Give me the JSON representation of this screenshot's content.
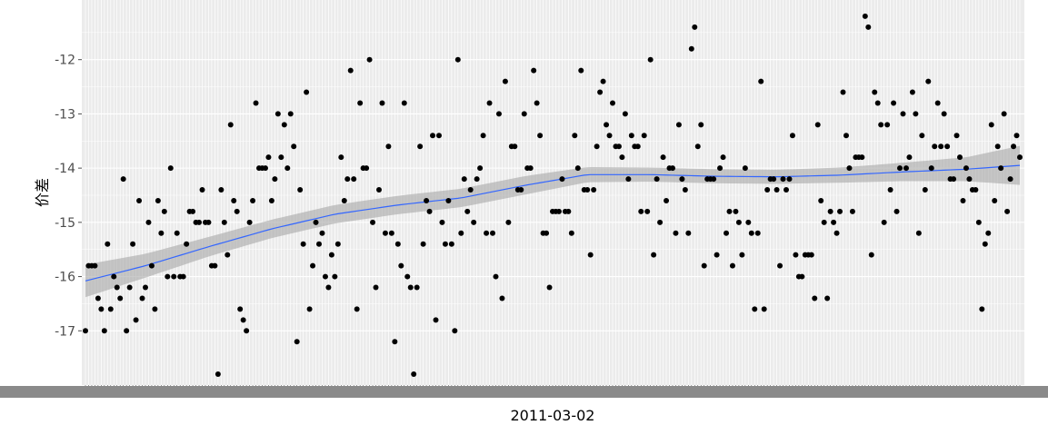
{
  "chart_data": {
    "type": "scatter",
    "title": "",
    "xlabel": "2011-03-02",
    "ylabel": "价差",
    "ylim": [
      -18.0,
      -10.9
    ],
    "yticks": [
      -17,
      -16,
      -15,
      -14,
      -13,
      -12
    ],
    "ytick_labels": [
      "-17",
      "-16",
      "-15",
      "-14",
      "-13",
      "-12"
    ],
    "x_axis_note": "x is the observation index 1..297 along a categorical time axis; only the overlapping tick labels and the title '2011-03-02' are legible",
    "grid": true,
    "point_color": "#000000",
    "smooth_color": "#3366ff",
    "ribbon_color": "#a6a6a6",
    "panel_background": "#ebebeb",
    "grid_color": "#ffffff",
    "points": [
      [
        1,
        -17.0
      ],
      [
        2,
        -15.8
      ],
      [
        3,
        -15.8
      ],
      [
        4,
        -15.8
      ],
      [
        5,
        -16.4
      ],
      [
        6,
        -16.6
      ],
      [
        7,
        -17.0
      ],
      [
        8,
        -15.4
      ],
      [
        9,
        -16.6
      ],
      [
        10,
        -16.0
      ],
      [
        11,
        -16.2
      ],
      [
        12,
        -16.4
      ],
      [
        13,
        -14.2
      ],
      [
        14,
        -17.0
      ],
      [
        15,
        -16.2
      ],
      [
        16,
        -15.4
      ],
      [
        17,
        -16.8
      ],
      [
        18,
        -14.6
      ],
      [
        19,
        -16.4
      ],
      [
        20,
        -16.2
      ],
      [
        21,
        -15.0
      ],
      [
        22,
        -15.8
      ],
      [
        23,
        -16.6
      ],
      [
        24,
        -14.6
      ],
      [
        25,
        -15.2
      ],
      [
        26,
        -14.8
      ],
      [
        27,
        -16.0
      ],
      [
        28,
        -14.0
      ],
      [
        29,
        -16.0
      ],
      [
        30,
        -15.2
      ],
      [
        31,
        -16.0
      ],
      [
        32,
        -16.0
      ],
      [
        33,
        -15.4
      ],
      [
        34,
        -14.8
      ],
      [
        35,
        -14.8
      ],
      [
        36,
        -15.0
      ],
      [
        37,
        -15.0
      ],
      [
        38,
        -14.4
      ],
      [
        39,
        -15.0
      ],
      [
        40,
        -15.0
      ],
      [
        41,
        -15.8
      ],
      [
        42,
        -15.8
      ],
      [
        43,
        -17.8
      ],
      [
        44,
        -14.4
      ],
      [
        45,
        -15.0
      ],
      [
        46,
        -15.6
      ],
      [
        47,
        -13.2
      ],
      [
        48,
        -14.6
      ],
      [
        49,
        -14.8
      ],
      [
        50,
        -16.6
      ],
      [
        51,
        -16.8
      ],
      [
        52,
        -17.0
      ],
      [
        53,
        -15.0
      ],
      [
        54,
        -14.6
      ],
      [
        55,
        -12.8
      ],
      [
        56,
        -14.0
      ],
      [
        57,
        -14.0
      ],
      [
        58,
        -14.0
      ],
      [
        59,
        -13.8
      ],
      [
        60,
        -14.6
      ],
      [
        61,
        -14.2
      ],
      [
        62,
        -13.0
      ],
      [
        63,
        -13.8
      ],
      [
        64,
        -13.2
      ],
      [
        65,
        -14.0
      ],
      [
        66,
        -13.0
      ],
      [
        67,
        -13.6
      ],
      [
        68,
        -17.2
      ],
      [
        69,
        -14.4
      ],
      [
        70,
        -15.4
      ],
      [
        71,
        -12.6
      ],
      [
        72,
        -16.6
      ],
      [
        73,
        -15.8
      ],
      [
        74,
        -15.0
      ],
      [
        75,
        -15.4
      ],
      [
        76,
        -15.2
      ],
      [
        77,
        -16.0
      ],
      [
        78,
        -16.2
      ],
      [
        79,
        -15.6
      ],
      [
        80,
        -16.0
      ],
      [
        81,
        -15.4
      ],
      [
        82,
        -13.8
      ],
      [
        83,
        -14.6
      ],
      [
        84,
        -14.2
      ],
      [
        85,
        -12.2
      ],
      [
        86,
        -14.2
      ],
      [
        87,
        -16.6
      ],
      [
        88,
        -12.8
      ],
      [
        89,
        -14.0
      ],
      [
        90,
        -14.0
      ],
      [
        91,
        -12.0
      ],
      [
        92,
        -15.0
      ],
      [
        93,
        -16.2
      ],
      [
        94,
        -14.4
      ],
      [
        95,
        -12.8
      ],
      [
        96,
        -15.2
      ],
      [
        97,
        -13.6
      ],
      [
        98,
        -15.2
      ],
      [
        99,
        -17.2
      ],
      [
        100,
        -15.4
      ],
      [
        101,
        -15.8
      ],
      [
        102,
        -12.8
      ],
      [
        103,
        -16.0
      ],
      [
        104,
        -16.2
      ],
      [
        105,
        -17.8
      ],
      [
        106,
        -16.2
      ],
      [
        107,
        -13.6
      ],
      [
        108,
        -15.4
      ],
      [
        109,
        -14.6
      ],
      [
        110,
        -14.8
      ],
      [
        111,
        -13.4
      ],
      [
        112,
        -16.8
      ],
      [
        113,
        -13.4
      ],
      [
        114,
        -15.0
      ],
      [
        115,
        -15.4
      ],
      [
        116,
        -14.6
      ],
      [
        117,
        -15.4
      ],
      [
        118,
        -17.0
      ],
      [
        119,
        -12.0
      ],
      [
        120,
        -15.2
      ],
      [
        121,
        -14.2
      ],
      [
        122,
        -14.8
      ],
      [
        123,
        -14.4
      ],
      [
        124,
        -15.0
      ],
      [
        125,
        -14.2
      ],
      [
        126,
        -14.0
      ],
      [
        127,
        -13.4
      ],
      [
        128,
        -15.2
      ],
      [
        129,
        -12.8
      ],
      [
        130,
        -15.2
      ],
      [
        131,
        -16.0
      ],
      [
        132,
        -13.0
      ],
      [
        133,
        -16.4
      ],
      [
        134,
        -12.4
      ],
      [
        135,
        -15.0
      ],
      [
        136,
        -13.6
      ],
      [
        137,
        -13.6
      ],
      [
        138,
        -14.4
      ],
      [
        139,
        -14.4
      ],
      [
        140,
        -13.0
      ],
      [
        141,
        -14.0
      ],
      [
        142,
        -14.0
      ],
      [
        143,
        -12.2
      ],
      [
        144,
        -12.8
      ],
      [
        145,
        -13.4
      ],
      [
        146,
        -15.2
      ],
      [
        147,
        -15.2
      ],
      [
        148,
        -16.2
      ],
      [
        149,
        -14.8
      ],
      [
        150,
        -14.8
      ],
      [
        151,
        -14.8
      ],
      [
        152,
        -14.2
      ],
      [
        153,
        -14.8
      ],
      [
        154,
        -14.8
      ],
      [
        155,
        -15.2
      ],
      [
        156,
        -13.4
      ],
      [
        157,
        -14.0
      ],
      [
        158,
        -12.2
      ],
      [
        159,
        -14.4
      ],
      [
        160,
        -14.4
      ],
      [
        161,
        -15.6
      ],
      [
        162,
        -14.4
      ],
      [
        163,
        -13.6
      ],
      [
        164,
        -12.6
      ],
      [
        165,
        -12.4
      ],
      [
        166,
        -13.2
      ],
      [
        167,
        -13.4
      ],
      [
        168,
        -12.8
      ],
      [
        169,
        -13.6
      ],
      [
        170,
        -13.6
      ],
      [
        171,
        -13.8
      ],
      [
        172,
        -13.0
      ],
      [
        173,
        -14.2
      ],
      [
        174,
        -13.4
      ],
      [
        175,
        -13.6
      ],
      [
        176,
        -13.6
      ],
      [
        177,
        -14.8
      ],
      [
        178,
        -13.4
      ],
      [
        179,
        -14.8
      ],
      [
        180,
        -12.0
      ],
      [
        181,
        -15.6
      ],
      [
        182,
        -14.2
      ],
      [
        183,
        -15.0
      ],
      [
        184,
        -13.8
      ],
      [
        185,
        -14.6
      ],
      [
        186,
        -14.0
      ],
      [
        187,
        -14.0
      ],
      [
        188,
        -15.2
      ],
      [
        189,
        -13.2
      ],
      [
        190,
        -14.2
      ],
      [
        191,
        -14.4
      ],
      [
        192,
        -15.2
      ],
      [
        193,
        -11.8
      ],
      [
        194,
        -11.4
      ],
      [
        195,
        -13.6
      ],
      [
        196,
        -13.2
      ],
      [
        197,
        -15.8
      ],
      [
        198,
        -14.2
      ],
      [
        199,
        -14.2
      ],
      [
        200,
        -14.2
      ],
      [
        201,
        -15.6
      ],
      [
        202,
        -14.0
      ],
      [
        203,
        -13.8
      ],
      [
        204,
        -15.2
      ],
      [
        205,
        -14.8
      ],
      [
        206,
        -15.8
      ],
      [
        207,
        -14.8
      ],
      [
        208,
        -15.0
      ],
      [
        209,
        -15.6
      ],
      [
        210,
        -14.0
      ],
      [
        211,
        -15.0
      ],
      [
        212,
        -15.2
      ],
      [
        213,
        -16.6
      ],
      [
        214,
        -15.2
      ],
      [
        215,
        -12.4
      ],
      [
        216,
        -16.6
      ],
      [
        217,
        -14.4
      ],
      [
        218,
        -14.2
      ],
      [
        219,
        -14.2
      ],
      [
        220,
        -14.4
      ],
      [
        221,
        -15.8
      ],
      [
        222,
        -14.2
      ],
      [
        223,
        -14.4
      ],
      [
        224,
        -14.2
      ],
      [
        225,
        -13.4
      ],
      [
        226,
        -15.6
      ],
      [
        227,
        -16.0
      ],
      [
        228,
        -16.0
      ],
      [
        229,
        -15.6
      ],
      [
        230,
        -15.6
      ],
      [
        231,
        -15.6
      ],
      [
        232,
        -16.4
      ],
      [
        233,
        -13.2
      ],
      [
        234,
        -14.6
      ],
      [
        235,
        -15.0
      ],
      [
        236,
        -16.4
      ],
      [
        237,
        -14.8
      ],
      [
        238,
        -15.0
      ],
      [
        239,
        -15.2
      ],
      [
        240,
        -14.8
      ],
      [
        241,
        -12.6
      ],
      [
        242,
        -13.4
      ],
      [
        243,
        -14.0
      ],
      [
        244,
        -14.8
      ],
      [
        245,
        -13.8
      ],
      [
        246,
        -13.8
      ],
      [
        247,
        -13.8
      ],
      [
        248,
        -11.2
      ],
      [
        249,
        -11.4
      ],
      [
        250,
        -15.6
      ],
      [
        251,
        -12.6
      ],
      [
        252,
        -12.8
      ],
      [
        253,
        -13.2
      ],
      [
        254,
        -15.0
      ],
      [
        255,
        -13.2
      ],
      [
        256,
        -14.4
      ],
      [
        257,
        -12.8
      ],
      [
        258,
        -14.8
      ],
      [
        259,
        -14.0
      ],
      [
        260,
        -13.0
      ],
      [
        261,
        -14.0
      ],
      [
        262,
        -13.8
      ],
      [
        263,
        -12.6
      ],
      [
        264,
        -13.0
      ],
      [
        265,
        -15.2
      ],
      [
        266,
        -13.4
      ],
      [
        267,
        -14.4
      ],
      [
        268,
        -12.4
      ],
      [
        269,
        -14.0
      ],
      [
        270,
        -13.6
      ],
      [
        271,
        -12.8
      ],
      [
        272,
        -13.6
      ],
      [
        273,
        -13.0
      ],
      [
        274,
        -13.6
      ],
      [
        275,
        -14.2
      ],
      [
        276,
        -14.2
      ],
      [
        277,
        -13.4
      ],
      [
        278,
        -13.8
      ],
      [
        279,
        -14.6
      ],
      [
        280,
        -14.0
      ],
      [
        281,
        -14.2
      ],
      [
        282,
        -14.4
      ],
      [
        283,
        -14.4
      ],
      [
        284,
        -15.0
      ],
      [
        285,
        -16.6
      ],
      [
        286,
        -15.4
      ],
      [
        287,
        -15.2
      ],
      [
        288,
        -13.2
      ],
      [
        289,
        -14.6
      ],
      [
        290,
        -13.6
      ],
      [
        291,
        -14.0
      ],
      [
        292,
        -13.0
      ],
      [
        293,
        -14.8
      ],
      [
        294,
        -14.2
      ],
      [
        295,
        -13.6
      ],
      [
        296,
        -13.4
      ],
      [
        297,
        -13.8
      ]
    ],
    "smooth": [
      [
        1,
        -16.08
      ],
      [
        20,
        -15.8
      ],
      [
        40,
        -15.45
      ],
      [
        60,
        -15.12
      ],
      [
        80,
        -14.85
      ],
      [
        100,
        -14.68
      ],
      [
        120,
        -14.55
      ],
      [
        140,
        -14.32
      ],
      [
        160,
        -14.12
      ],
      [
        180,
        -14.12
      ],
      [
        200,
        -14.15
      ],
      [
        220,
        -14.16
      ],
      [
        240,
        -14.13
      ],
      [
        260,
        -14.07
      ],
      [
        280,
        -14.02
      ],
      [
        297,
        -13.95
      ]
    ],
    "ribbon_halfwidth": [
      [
        1,
        0.3
      ],
      [
        20,
        0.22
      ],
      [
        40,
        0.18
      ],
      [
        60,
        0.17
      ],
      [
        80,
        0.17
      ],
      [
        100,
        0.17
      ],
      [
        120,
        0.17
      ],
      [
        140,
        0.17
      ],
      [
        160,
        0.14
      ],
      [
        180,
        0.13
      ],
      [
        200,
        0.13
      ],
      [
        220,
        0.13
      ],
      [
        240,
        0.14
      ],
      [
        260,
        0.17
      ],
      [
        280,
        0.22
      ],
      [
        297,
        0.36
      ]
    ]
  }
}
